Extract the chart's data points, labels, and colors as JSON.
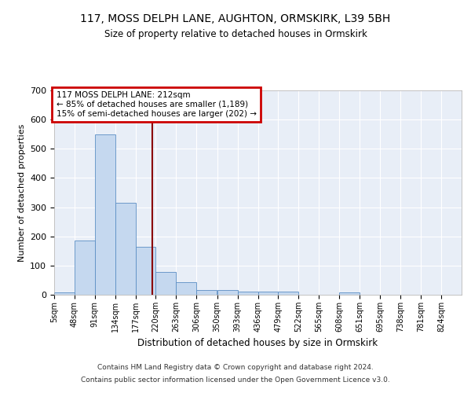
{
  "title1": "117, MOSS DELPH LANE, AUGHTON, ORMSKIRK, L39 5BH",
  "title2": "Size of property relative to detached houses in Ormskirk",
  "xlabel": "Distribution of detached houses by size in Ormskirk",
  "ylabel": "Number of detached properties",
  "bin_edges": [
    5,
    48,
    91,
    134,
    177,
    220,
    263,
    306,
    350,
    393,
    436,
    479,
    522,
    565,
    608,
    651,
    695,
    738,
    781,
    824,
    867
  ],
  "bar_heights": [
    8,
    185,
    550,
    315,
    165,
    77,
    42,
    17,
    17,
    12,
    10,
    10,
    0,
    0,
    7,
    0,
    0,
    0,
    0,
    0
  ],
  "bar_color": "#c5d8ef",
  "bar_edgecolor": "#5b8ec4",
  "vline_x": 212,
  "vline_color": "#8b0000",
  "annotation_line1": "117 MOSS DELPH LANE: 212sqm",
  "annotation_line2": "← 85% of detached houses are smaller (1,189)",
  "annotation_line3": "15% of semi-detached houses are larger (202) →",
  "annotation_box_color": "#ffffff",
  "annotation_box_edgecolor": "#cc0000",
  "ylim": [
    0,
    700
  ],
  "yticks": [
    0,
    100,
    200,
    300,
    400,
    500,
    600,
    700
  ],
  "footer1": "Contains HM Land Registry data © Crown copyright and database right 2024.",
  "footer2": "Contains public sector information licensed under the Open Government Licence v3.0.",
  "bg_color": "#e8eef7",
  "fig_bg_color": "#ffffff"
}
